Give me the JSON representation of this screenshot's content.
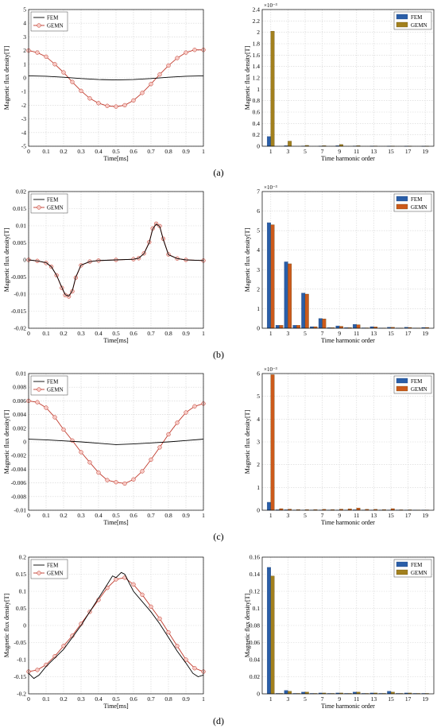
{
  "figure": {
    "panel_labels": [
      "(a)",
      "(b)",
      "(c)",
      "(d)"
    ],
    "time_xlabel": "Time[ms]",
    "harmonic_xlabel": "Time harmonic order",
    "ylabel": "Magnetic flux density[T]",
    "time_xticks": [
      "0",
      "0.1",
      "0.2",
      "0.3",
      "0.4",
      "0.5",
      "0.6",
      "0.7",
      "0.8",
      "0.9",
      "1"
    ],
    "harmonic_xticks": [
      "1",
      "3",
      "5",
      "7",
      "9",
      "11",
      "13",
      "15",
      "17",
      "19"
    ],
    "legend": [
      "FEM",
      "GEMN"
    ],
    "colors": {
      "fem_line": "#000000",
      "gemn_line": "#c0392b",
      "gemn_marker_fill": "#f7c9c4",
      "fem_bar": "#2a5ea8",
      "gemn_bar_olive": "#a2801d",
      "gemn_bar_orange": "#cc5a1b",
      "grid": "#d4d4d4"
    }
  },
  "chart_data": [
    {
      "type": "line",
      "panel": "(a)",
      "side": "time",
      "xlabel": "Time[ms]",
      "ylabel": "Magnetic flux density[T]",
      "xlim": [
        0,
        1
      ],
      "ylim": [
        -5,
        5
      ],
      "yticks": [
        -5,
        -4,
        -3,
        -2,
        -1,
        0,
        1,
        2,
        3,
        4,
        5
      ],
      "ytick_labels": [
        "-5",
        "-4",
        "-3",
        "-2",
        "-1",
        "0",
        "1",
        "2",
        "3",
        "4",
        "5"
      ],
      "grid": true,
      "legend_position": "top-left",
      "series": [
        {
          "name": "FEM",
          "x": [
            0,
            0.1,
            0.2,
            0.3,
            0.4,
            0.5,
            0.6,
            0.7,
            0.8,
            0.9,
            1
          ],
          "y": [
            0.15,
            0.12,
            0.05,
            -0.05,
            -0.12,
            -0.15,
            -0.12,
            -0.05,
            0.05,
            0.12,
            0.15
          ]
        },
        {
          "name": "GEMN",
          "x": [
            0,
            0.05,
            0.1,
            0.15,
            0.2,
            0.25,
            0.3,
            0.35,
            0.4,
            0.45,
            0.5,
            0.55,
            0.6,
            0.65,
            0.7,
            0.75,
            0.8,
            0.85,
            0.9,
            0.95,
            1
          ],
          "y": [
            2.0,
            1.85,
            1.55,
            1.0,
            0.4,
            -0.3,
            -0.95,
            -1.5,
            -1.85,
            -2.05,
            -2.1,
            -2.0,
            -1.65,
            -1.1,
            -0.45,
            0.25,
            0.9,
            1.45,
            1.85,
            2.05,
            2.05
          ]
        }
      ]
    },
    {
      "type": "bar",
      "panel": "(a)",
      "side": "harmonic",
      "xlabel": "Time harmonic order",
      "ylabel": "Magnetic flux density[T]",
      "exponent_label": "×10⁻³",
      "ylim": [
        0,
        2.4
      ],
      "yticks": [
        0,
        0.2,
        0.4,
        0.6,
        0.8,
        1,
        1.2,
        1.4,
        1.6,
        1.8,
        2,
        2.2,
        2.4
      ],
      "ytick_labels": [
        "0",
        "0.2",
        "0.4",
        "0.6",
        "0.8",
        "1",
        "1.2",
        "1.4",
        "1.6",
        "1.8",
        "2",
        "2.2",
        "2.4"
      ],
      "grid": true,
      "legend_position": "top-right",
      "gemn_color": "#a2801d",
      "categories": [
        1,
        2,
        3,
        4,
        5,
        6,
        7,
        8,
        9,
        10,
        11,
        12,
        13,
        14,
        15,
        16,
        17,
        18,
        19
      ],
      "series": [
        {
          "name": "FEM",
          "values": [
            0.17,
            0,
            0.01,
            0,
            0.005,
            0,
            0.003,
            0,
            0.01,
            0,
            0.005,
            0,
            0.003,
            0,
            0.002,
            0,
            0.002,
            0,
            0.001
          ]
        },
        {
          "name": "GEMN",
          "values": [
            2.02,
            0,
            0.09,
            0,
            0.015,
            0,
            0.01,
            0,
            0.03,
            0,
            0.01,
            0,
            0.005,
            0,
            0.003,
            0,
            0.002,
            0,
            0.002
          ]
        }
      ]
    },
    {
      "type": "line",
      "panel": "(b)",
      "side": "time",
      "xlabel": "Time[ms]",
      "ylabel": "Magnetic flux density[T]",
      "xlim": [
        0,
        1
      ],
      "ylim": [
        -0.02,
        0.02
      ],
      "yticks": [
        -0.02,
        -0.015,
        -0.01,
        -0.005,
        0,
        0.005,
        0.01,
        0.015,
        0.02
      ],
      "ytick_labels": [
        "-0.02",
        "-0.015",
        "-0.01",
        "-0.005",
        "0",
        "0.005",
        "0.01",
        "0.015",
        "0.02"
      ],
      "grid": true,
      "legend_position": "top-left",
      "series": [
        {
          "name": "FEM",
          "x": [
            0,
            0.05,
            0.1,
            0.13,
            0.16,
            0.19,
            0.21,
            0.23,
            0.25,
            0.27,
            0.3,
            0.35,
            0.4,
            0.5,
            0.6,
            0.63,
            0.66,
            0.69,
            0.71,
            0.73,
            0.75,
            0.77,
            0.8,
            0.85,
            0.9,
            1
          ],
          "y": [
            0,
            -0.0003,
            -0.0008,
            -0.002,
            -0.0045,
            -0.008,
            -0.0102,
            -0.0106,
            -0.009,
            -0.005,
            -0.0015,
            -0.0005,
            -0.0002,
            0,
            0.0002,
            0.0005,
            0.0018,
            0.005,
            0.009,
            0.0105,
            0.0098,
            0.006,
            0.0015,
            0.0004,
            0,
            -0.0002
          ]
        },
        {
          "name": "GEMN",
          "x": [
            0,
            0.05,
            0.1,
            0.13,
            0.16,
            0.19,
            0.21,
            0.23,
            0.25,
            0.27,
            0.3,
            0.35,
            0.4,
            0.5,
            0.6,
            0.63,
            0.66,
            0.69,
            0.71,
            0.73,
            0.75,
            0.77,
            0.8,
            0.85,
            0.9,
            1
          ],
          "y": [
            0,
            -0.0003,
            -0.0009,
            -0.002,
            -0.0045,
            -0.0082,
            -0.0103,
            -0.0107,
            -0.0092,
            -0.0052,
            -0.0016,
            -0.0005,
            -0.0002,
            0,
            0.0002,
            0.0005,
            0.0019,
            0.0052,
            0.0092,
            0.0106,
            0.0099,
            0.0062,
            0.0016,
            0.0004,
            0,
            -0.0002
          ]
        }
      ]
    },
    {
      "type": "bar",
      "panel": "(b)",
      "side": "harmonic",
      "xlabel": "Time harmonic order",
      "ylabel": "Magnetic flux density[T]",
      "exponent_label": "×10⁻³",
      "ylim": [
        0,
        7
      ],
      "yticks": [
        0,
        1,
        2,
        3,
        4,
        5,
        6,
        7
      ],
      "ytick_labels": [
        "0",
        "1",
        "2",
        "3",
        "4",
        "5",
        "6",
        "7"
      ],
      "grid": true,
      "legend_position": "top-right",
      "gemn_color": "#cc5a1b",
      "categories": [
        1,
        2,
        3,
        4,
        5,
        6,
        7,
        8,
        9,
        10,
        11,
        12,
        13,
        14,
        15,
        16,
        17,
        18,
        19
      ],
      "series": [
        {
          "name": "FEM",
          "values": [
            5.4,
            0.15,
            3.4,
            0.15,
            1.8,
            0.08,
            0.5,
            0.03,
            0.12,
            0.03,
            0.2,
            0.02,
            0.08,
            0.01,
            0.05,
            0.01,
            0.05,
            0.01,
            0.04
          ]
        },
        {
          "name": "GEMN",
          "values": [
            5.3,
            0.15,
            3.3,
            0.15,
            1.75,
            0.08,
            0.48,
            0.03,
            0.1,
            0.03,
            0.18,
            0.02,
            0.07,
            0.01,
            0.05,
            0.01,
            0.04,
            0.01,
            0.04
          ]
        }
      ]
    },
    {
      "type": "line",
      "panel": "(c)",
      "side": "time",
      "xlabel": "Time[ms]",
      "ylabel": "Magnetic flux density[T]",
      "xlim": [
        0,
        1
      ],
      "ylim": [
        -0.01,
        0.01
      ],
      "yticks": [
        -0.01,
        -0.008,
        -0.006,
        -0.004,
        -0.002,
        0,
        0.002,
        0.004,
        0.006,
        0.008,
        0.01
      ],
      "ytick_labels": [
        "-0.01",
        "-0.008",
        "-0.006",
        "-0.004",
        "-0.002",
        "0",
        "0.002",
        "0.004",
        "0.006",
        "0.008",
        "0.01"
      ],
      "grid": true,
      "legend_position": "top-left",
      "series": [
        {
          "name": "FEM",
          "x": [
            0,
            0.1,
            0.2,
            0.3,
            0.4,
            0.5,
            0.6,
            0.7,
            0.8,
            0.9,
            1
          ],
          "y": [
            0.0004,
            0.0003,
            0.00015,
            0,
            -0.0002,
            -0.0004,
            -0.0003,
            -0.00015,
            0,
            0.0002,
            0.0004
          ]
        },
        {
          "name": "GEMN",
          "x": [
            0,
            0.05,
            0.1,
            0.15,
            0.2,
            0.25,
            0.3,
            0.35,
            0.4,
            0.45,
            0.5,
            0.55,
            0.6,
            0.65,
            0.7,
            0.75,
            0.8,
            0.85,
            0.9,
            0.95,
            1
          ],
          "y": [
            0.006,
            0.0058,
            0.005,
            0.0036,
            0.0018,
            0.0002,
            -0.0015,
            -0.003,
            -0.0045,
            -0.0056,
            -0.0059,
            -0.0061,
            -0.0055,
            -0.0043,
            -0.0026,
            -0.0008,
            0.0011,
            0.0028,
            0.0043,
            0.0052,
            0.0056
          ]
        }
      ]
    },
    {
      "type": "bar",
      "panel": "(c)",
      "side": "harmonic",
      "xlabel": "Time harmonic order",
      "ylabel": "Magnetic flux density[T]",
      "exponent_label": "×10⁻³",
      "ylim": [
        0,
        6
      ],
      "yticks": [
        0,
        1,
        2,
        3,
        4,
        5,
        6
      ],
      "ytick_labels": [
        "0",
        "1",
        "2",
        "3",
        "4",
        "5",
        "6"
      ],
      "grid": true,
      "legend_position": "top-right",
      "gemn_color": "#cc5a1b",
      "categories": [
        1,
        2,
        3,
        4,
        5,
        6,
        7,
        8,
        9,
        10,
        11,
        12,
        13,
        14,
        15,
        16,
        17,
        18,
        19
      ],
      "series": [
        {
          "name": "FEM",
          "values": [
            0.35,
            0.02,
            0.02,
            0.01,
            0.01,
            0.01,
            0.01,
            0.01,
            0.01,
            0.01,
            0.02,
            0.01,
            0.01,
            0.01,
            0.01,
            0.01,
            0.01,
            0.01,
            0.01
          ]
        },
        {
          "name": "GEMN",
          "values": [
            5.95,
            0.07,
            0.05,
            0.03,
            0.03,
            0.03,
            0.04,
            0.03,
            0.05,
            0.06,
            0.1,
            0.04,
            0.04,
            0.03,
            0.07,
            0.02,
            0.02,
            0.01,
            0.01
          ]
        }
      ]
    },
    {
      "type": "line",
      "panel": "(d)",
      "side": "time",
      "xlabel": "Time[ms]",
      "ylabel": "Magnetic flux density[T]",
      "xlim": [
        0,
        1
      ],
      "ylim": [
        -0.2,
        0.2
      ],
      "yticks": [
        -0.2,
        -0.15,
        -0.1,
        -0.05,
        0,
        0.05,
        0.1,
        0.15,
        0.2
      ],
      "ytick_labels": [
        "-0.2",
        "-0.15",
        "-0.1",
        "-0.05",
        "0",
        "0.05",
        "0.1",
        "0.15",
        "0.2"
      ],
      "grid": true,
      "legend_position": "top-left",
      "series": [
        {
          "name": "FEM",
          "x": [
            0,
            0.03,
            0.06,
            0.1,
            0.15,
            0.2,
            0.25,
            0.3,
            0.35,
            0.4,
            0.45,
            0.48,
            0.5,
            0.53,
            0.55,
            0.58,
            0.6,
            0.65,
            0.7,
            0.75,
            0.8,
            0.85,
            0.9,
            0.94,
            0.97,
            1
          ],
          "y": [
            -0.14,
            -0.155,
            -0.145,
            -0.12,
            -0.095,
            -0.07,
            -0.035,
            0,
            0.04,
            0.08,
            0.12,
            0.145,
            0.14,
            0.155,
            0.15,
            0.12,
            0.1,
            0.07,
            0.04,
            0.005,
            -0.035,
            -0.075,
            -0.11,
            -0.14,
            -0.15,
            -0.145
          ]
        },
        {
          "name": "GEMN",
          "x": [
            0,
            0.05,
            0.1,
            0.15,
            0.2,
            0.25,
            0.3,
            0.35,
            0.4,
            0.45,
            0.5,
            0.55,
            0.6,
            0.65,
            0.7,
            0.75,
            0.8,
            0.85,
            0.9,
            0.95,
            1
          ],
          "y": [
            -0.135,
            -0.13,
            -0.115,
            -0.09,
            -0.06,
            -0.03,
            0.005,
            0.04,
            0.075,
            0.11,
            0.135,
            0.14,
            0.12,
            0.09,
            0.055,
            0.02,
            -0.02,
            -0.06,
            -0.1,
            -0.125,
            -0.135
          ]
        }
      ]
    },
    {
      "type": "bar",
      "panel": "(d)",
      "side": "harmonic",
      "xlabel": "Time harmonic order",
      "ylabel": "Magnetic flux density[T]",
      "ylim": [
        0,
        0.16
      ],
      "yticks": [
        0,
        0.02,
        0.04,
        0.06,
        0.08,
        0.1,
        0.12,
        0.14,
        0.16
      ],
      "ytick_labels": [
        "0",
        "0.02",
        "0.04",
        "0.06",
        "0.08",
        "0.1",
        "0.12",
        "0.14",
        "0.16"
      ],
      "grid": true,
      "legend_position": "top-right",
      "gemn_color": "#a2801d",
      "categories": [
        1,
        2,
        3,
        4,
        5,
        6,
        7,
        8,
        9,
        10,
        11,
        12,
        13,
        14,
        15,
        16,
        17,
        18,
        19
      ],
      "series": [
        {
          "name": "FEM",
          "values": [
            0.148,
            0.0005,
            0.004,
            0.0005,
            0.002,
            0.0005,
            0.001,
            0.0005,
            0.001,
            0.0005,
            0.002,
            0.0005,
            0.001,
            0.0005,
            0.003,
            0.0005,
            0.001,
            0.0005,
            0.0005
          ]
        },
        {
          "name": "GEMN",
          "values": [
            0.138,
            0.0005,
            0.003,
            0.0005,
            0.002,
            0.0005,
            0.001,
            0.0005,
            0.001,
            0.0005,
            0.002,
            0.0005,
            0.001,
            0.0005,
            0.002,
            0.0005,
            0.001,
            0.0005,
            0.0005
          ]
        }
      ]
    }
  ]
}
